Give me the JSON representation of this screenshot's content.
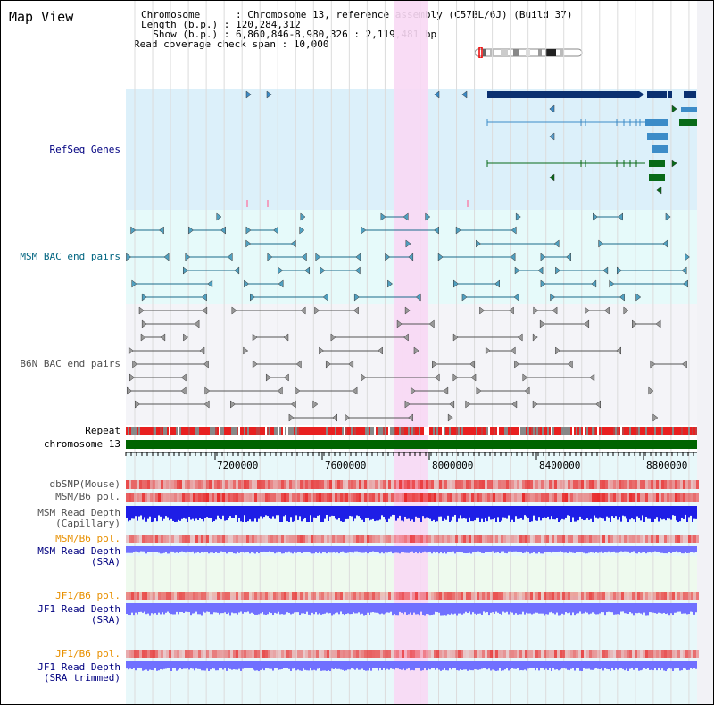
{
  "title": "Map View",
  "header": {
    "chromosome_line": "Chromosome      : Chromosome 13, reference assembly (C57BL/6J) (Build 37)",
    "length_line": "Length (b.p.) : 120,284,312",
    "show_line": "  Show (b.p.) : 6,860,846-8,980,326 : 2,119,481 bp",
    "coverage_line": "Read coverage check span : 10,000"
  },
  "tracks": {
    "refseq": "RefSeq Genes",
    "msm_bac": "MSM BAC end pairs",
    "b6n_bac": "B6N BAC end pairs",
    "repeat": "Repeat",
    "chromosome": "chromosome 13",
    "dbsnp": "dbSNP(Mouse)",
    "msm_b6_pol": "MSM/B6 pol.",
    "msm_read_depth_cap_1": "MSM Read Depth",
    "msm_read_depth_cap_2": "(Capillary)",
    "msm_b6_pol_sra": "MSM/B6 pol.",
    "msm_read_depth_sra_1": "MSM Read Depth",
    "msm_read_depth_sra_2": "(SRA)",
    "jf1_b6_pol": "JF1/B6 pol.",
    "jf1_read_depth_1": "JF1 Read Depth",
    "jf1_read_depth_2": "(SRA)",
    "jf1_b6_pol_trim": "JF1/B6 pol.",
    "jf1_read_depth_trim_1": "JF1 Read Depth",
    "jf1_read_depth_trim_2": "(SRA trimmed)"
  },
  "axis": {
    "ticks": [
      "7200000",
      "7600000",
      "8000000",
      "8400000",
      "8800000"
    ],
    "range_start": 6860846,
    "range_end": 8980326
  },
  "colors": {
    "refseq_bg": "#dcf0fa",
    "msm_bg": "#e6fafa",
    "b6n_bg": "#f4f4f8",
    "highlight": "#f8d8f4",
    "chromosome_bar": "#006400",
    "label_dark_blue": "#000080",
    "label_teal": "#006480",
    "label_gray": "#505050",
    "label_orange": "#e89000",
    "depth_blue": "#1e1ee6",
    "depth_sra": "#7070ff"
  }
}
